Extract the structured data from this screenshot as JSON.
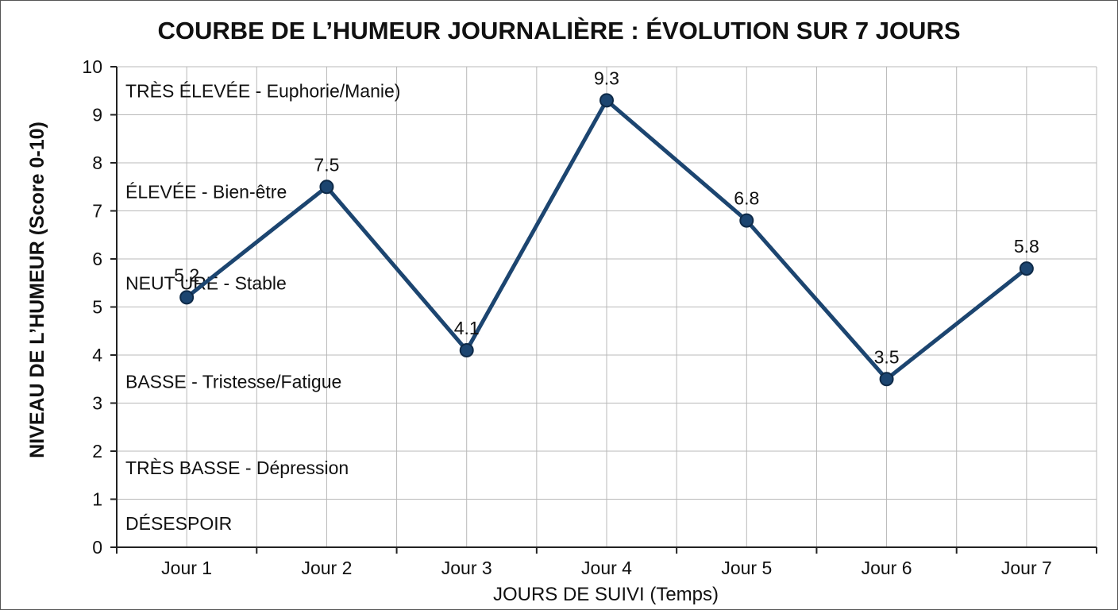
{
  "chart_data": {
    "type": "line",
    "title": "COURBE DE L’HUMEUR JOURNALIÈRE : ÉVOLUTION SUR 7 JOURS",
    "xlabel": "JOURS DE SUIVI (Temps)",
    "ylabel": "NIVEAU DE L’HUMEUR (Score 0-10)",
    "categories": [
      "Jour 1",
      "Jour 2",
      "Jour 3",
      "Jour 4",
      "Jour 5",
      "Jour 6",
      "Jour 7"
    ],
    "values": [
      5.2,
      7.5,
      4.1,
      9.3,
      6.8,
      3.5,
      5.8
    ],
    "data_labels": [
      "5.2",
      "7.5",
      "4.1",
      "9.3",
      "6.8",
      "3.5",
      "5.8"
    ],
    "ylim": [
      0,
      10
    ],
    "yticks": [
      0,
      1,
      2,
      3,
      4,
      5,
      6,
      7,
      8,
      9,
      10
    ],
    "grid": true,
    "zones": [
      {
        "label": "TRÈS ÉLEVÉE - Euphorie/Manie)",
        "y": 9.5
      },
      {
        "label": "ÉLEVÉE - Bien-être",
        "y": 7.4
      },
      {
        "label": "NEUT URE - Stable",
        "y": 5.5
      },
      {
        "label": "BASSE - Tristesse/Fatigue",
        "y": 3.45
      },
      {
        "label": "TRÈS BASSE - Dépression",
        "y": 1.65
      },
      {
        "label": "DÉSESPOIR",
        "y": 0.5
      }
    ],
    "colors": {
      "line": "#1c4570",
      "point": "#1c4570",
      "grid": "#b8b8b8",
      "axis": "#222222",
      "text": "#111111"
    }
  }
}
